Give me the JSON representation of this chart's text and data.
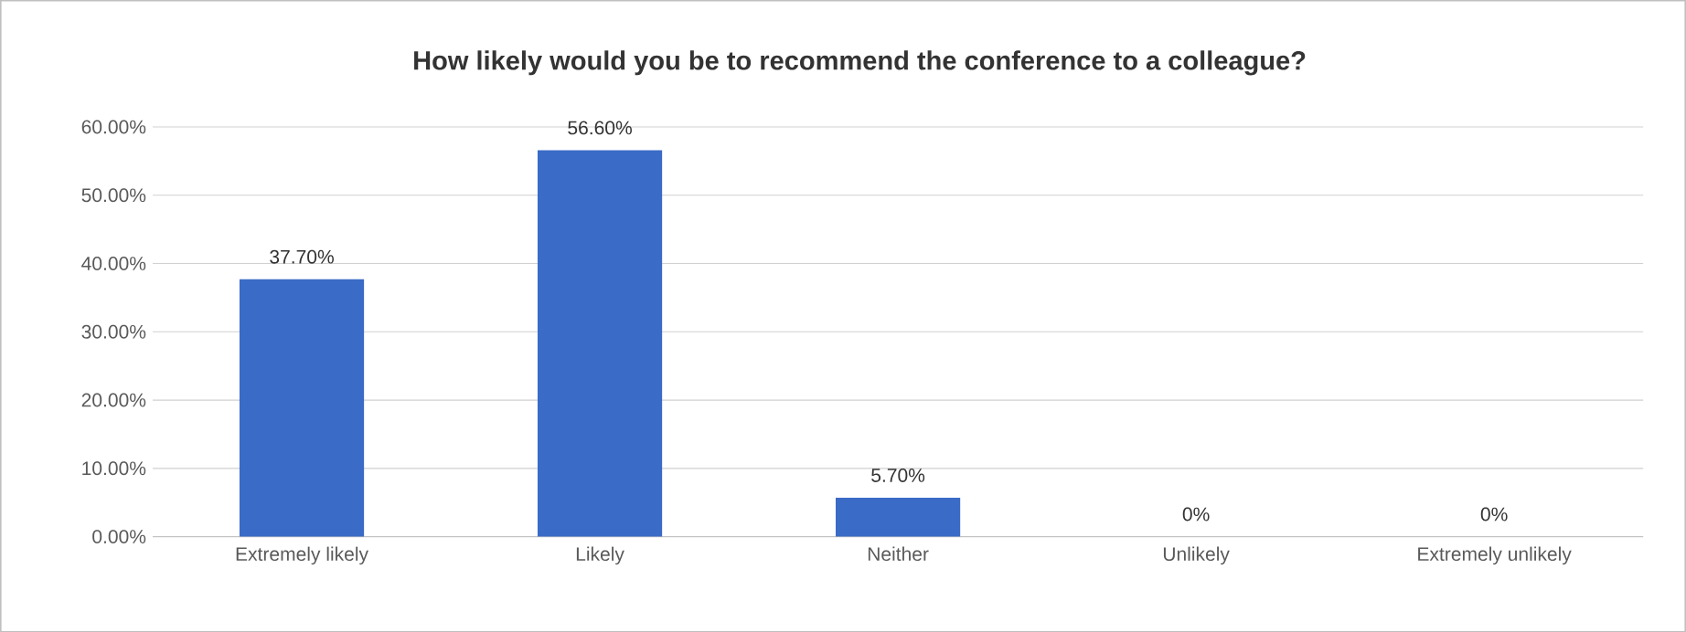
{
  "chart_data": {
    "type": "bar",
    "title": "How likely would you be to recommend the conference to a colleague?",
    "categories": [
      "Extremely likely",
      "Likely",
      "Neither",
      "Unlikely",
      "Extremely unlikely"
    ],
    "values": [
      37.7,
      56.6,
      5.7,
      0,
      0
    ],
    "value_labels": [
      "37.70%",
      "56.60%",
      "5.70%",
      "0%",
      "0%"
    ],
    "color": "#3a6bc6",
    "ylim": [
      0,
      60
    ],
    "yticks": [
      {
        "value": 0,
        "label": "0.00%"
      },
      {
        "value": 10,
        "label": "10.00%"
      },
      {
        "value": 20,
        "label": "20.00%"
      },
      {
        "value": 30,
        "label": "30.00%"
      },
      {
        "value": 40,
        "label": "40.00%"
      },
      {
        "value": 50,
        "label": "50.00%"
      },
      {
        "value": 60,
        "label": "60.00%"
      }
    ],
    "grid": "y"
  }
}
